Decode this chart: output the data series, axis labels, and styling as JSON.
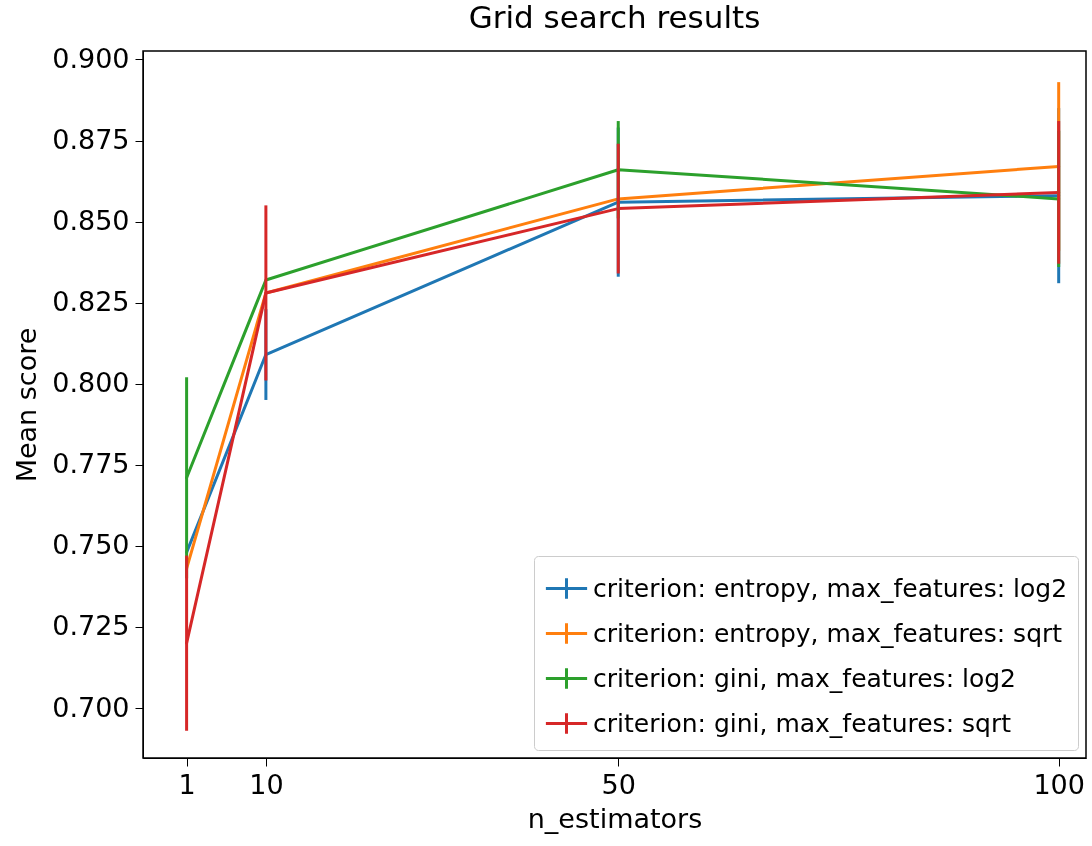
{
  "chart_data": {
    "type": "line",
    "title": "Grid search results",
    "xlabel": "n_estimators",
    "ylabel": "Mean score",
    "x": [
      1,
      10,
      50,
      100
    ],
    "series": [
      {
        "name": "criterion: entropy, max_features: log2",
        "color": "#1f77b4",
        "values": [
          0.748,
          0.809,
          0.856,
          0.858
        ],
        "errors": [
          null,
          0.014,
          0.023,
          0.027
        ]
      },
      {
        "name": "criterion: entropy, max_features: sqrt",
        "color": "#ff7f0e",
        "values": [
          0.743,
          0.828,
          0.857,
          0.867
        ],
        "errors": [
          null,
          null,
          null,
          0.026
        ]
      },
      {
        "name": "criterion: gini, max_features: log2",
        "color": "#2ca02c",
        "values": [
          0.771,
          0.832,
          0.866,
          0.857
        ],
        "errors": [
          0.031,
          null,
          0.015,
          0.021
        ]
      },
      {
        "name": "criterion: gini, max_features: sqrt",
        "color": "#d62728",
        "values": [
          0.72,
          0.828,
          0.854,
          0.859
        ],
        "errors": [
          0.027,
          0.027,
          0.02,
          0.022
        ]
      }
    ],
    "xlim": [
      -3.95,
      103.1
    ],
    "ylim": [
      0.6846,
      0.9026
    ],
    "xticks": [
      1,
      10,
      50,
      100
    ],
    "yticks": [
      {
        "value": 0.7,
        "label": "0.700"
      },
      {
        "value": 0.725,
        "label": "0.725"
      },
      {
        "value": 0.75,
        "label": "0.750"
      },
      {
        "value": 0.775,
        "label": "0.775"
      },
      {
        "value": 0.8,
        "label": "0.800"
      },
      {
        "value": 0.825,
        "label": "0.825"
      },
      {
        "value": 0.85,
        "label": "0.850"
      },
      {
        "value": 0.875,
        "label": "0.875"
      },
      {
        "value": 0.9,
        "label": "0.900"
      }
    ],
    "legend": "bottom right",
    "grid": false,
    "marker": "none",
    "line_style": "solid"
  }
}
